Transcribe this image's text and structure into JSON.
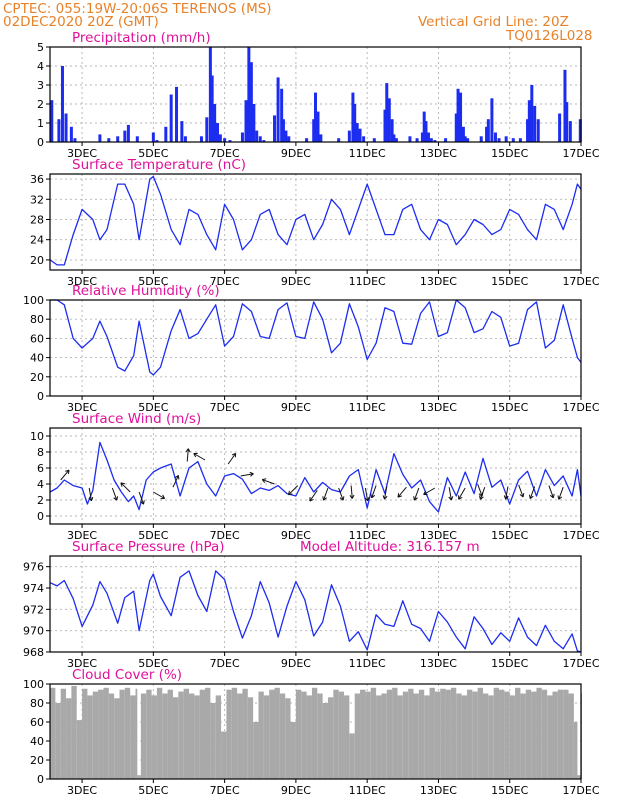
{
  "header": {
    "line1": "CPTEC:   055:19W-20:06S   TERENOS (MS)",
    "line2": "02DEC2020 20Z (GMT)",
    "grid_note": "Vertical Grid Line: 20Z",
    "code": "TQ0126L028"
  },
  "colors": {
    "header": "#e8822a",
    "panel_title": "#e0119b",
    "series": "#1d2df0",
    "arrow": "#111111",
    "cloud": "#a9a9a9",
    "grid": "#b4b4b4"
  },
  "x_axis": {
    "ticks": [
      "3DEC",
      "5DEC",
      "7DEC",
      "9DEC",
      "11DEC",
      "13DEC",
      "15DEC",
      "17DEC"
    ],
    "tick_days": [
      3,
      5,
      7,
      9,
      11,
      13,
      15,
      17
    ],
    "range_days": [
      2.1,
      17.0
    ]
  },
  "chart_data": [
    {
      "id": "precip",
      "type": "bar",
      "title": "Precipitation (mm/h)",
      "ylim": [
        0,
        5
      ],
      "yticks": [
        0,
        1,
        2,
        3,
        4,
        5
      ],
      "grid": true,
      "x": [
        2.15,
        2.35,
        2.45,
        2.55,
        2.7,
        2.8,
        3.5,
        3.75,
        4.0,
        4.2,
        4.3,
        4.55,
        5.0,
        5.1,
        5.35,
        5.5,
        5.65,
        5.8,
        5.9,
        6.35,
        6.5,
        6.6,
        6.65,
        6.72,
        6.8,
        6.88,
        7.0,
        7.15,
        7.5,
        7.6,
        7.68,
        7.75,
        7.82,
        7.9,
        8.0,
        8.1,
        8.4,
        8.5,
        8.6,
        8.65,
        8.72,
        8.8,
        9.3,
        9.5,
        9.55,
        9.62,
        9.7,
        10.2,
        10.5,
        10.6,
        10.65,
        10.72,
        10.8,
        10.9,
        11.2,
        11.5,
        11.55,
        11.62,
        11.7,
        11.75,
        11.82,
        12.2,
        12.4,
        12.55,
        12.6,
        12.65,
        12.72,
        12.8,
        12.9,
        13.2,
        13.5,
        13.55,
        13.62,
        13.7,
        13.75,
        13.82,
        14.2,
        14.35,
        14.4,
        14.5,
        14.6,
        14.7,
        14.9,
        15.1,
        15.3,
        15.5,
        15.55,
        15.62,
        15.7,
        15.8,
        16.4,
        16.55,
        16.6,
        16.7,
        16.98
      ],
      "values": [
        2.2,
        1.2,
        4.0,
        1.5,
        0.8,
        0.2,
        0.4,
        0.2,
        0.3,
        0.6,
        0.9,
        0.3,
        0.5,
        0.1,
        0.8,
        2.5,
        2.9,
        1.1,
        0.3,
        0.3,
        1.3,
        5.0,
        3.5,
        2.0,
        1.0,
        0.4,
        0.2,
        0.1,
        0.5,
        2.2,
        5.0,
        4.2,
        2.0,
        0.6,
        0.3,
        0.1,
        1.4,
        3.4,
        2.8,
        1.2,
        0.6,
        0.3,
        0.2,
        1.2,
        2.6,
        1.6,
        0.4,
        0.2,
        0.6,
        2.6,
        2.0,
        1.0,
        0.7,
        0.3,
        0.2,
        1.7,
        3.1,
        2.3,
        1.2,
        0.4,
        0.2,
        0.3,
        0.2,
        0.5,
        1.6,
        1.1,
        0.5,
        0.2,
        0.1,
        0.2,
        1.5,
        2.8,
        2.6,
        0.8,
        0.3,
        0.2,
        0.3,
        0.8,
        1.2,
        2.3,
        0.5,
        0.2,
        0.3,
        0.2,
        0.2,
        1.2,
        2.2,
        3.0,
        1.9,
        1.2,
        1.5,
        3.8,
        2.1,
        1.1,
        1.2
      ]
    },
    {
      "id": "temperature",
      "type": "line",
      "title": "Surface Temperature (nC)",
      "ylim": [
        18,
        37
      ],
      "yticks": [
        20,
        24,
        28,
        32,
        36
      ],
      "grid": true,
      "x": [
        2.1,
        2.3,
        2.5,
        2.75,
        3.0,
        3.3,
        3.5,
        3.7,
        4.0,
        4.2,
        4.45,
        4.6,
        4.9,
        5.0,
        5.2,
        5.5,
        5.75,
        6.0,
        6.25,
        6.5,
        6.75,
        7.0,
        7.25,
        7.5,
        7.75,
        8.0,
        8.25,
        8.5,
        8.75,
        9.0,
        9.25,
        9.5,
        9.75,
        10.0,
        10.25,
        10.5,
        10.75,
        11.0,
        11.25,
        11.5,
        11.75,
        12.0,
        12.25,
        12.5,
        12.75,
        13.0,
        13.25,
        13.5,
        13.75,
        14.0,
        14.25,
        14.5,
        14.75,
        15.0,
        15.25,
        15.5,
        15.75,
        16.0,
        16.25,
        16.5,
        16.75,
        16.9,
        17.0
      ],
      "values": [
        20,
        19,
        19,
        25,
        30,
        28,
        24,
        26,
        35,
        35,
        31,
        24,
        36,
        36.5,
        33,
        26,
        23,
        30,
        29,
        25,
        22,
        31,
        28,
        22,
        24,
        29,
        30,
        25,
        23,
        28,
        29,
        24,
        27,
        32,
        30,
        25,
        30,
        35,
        30,
        25,
        25,
        30,
        31,
        26,
        24,
        28,
        27,
        23,
        25,
        28,
        27,
        25,
        26,
        30,
        29,
        26,
        24,
        31,
        30,
        26,
        31,
        35,
        34
      ]
    },
    {
      "id": "humidity",
      "type": "line",
      "title": "Relative Humidity (%)",
      "ylim": [
        0,
        100
      ],
      "yticks": [
        0,
        20,
        40,
        60,
        80,
        100
      ],
      "grid": true,
      "x": [
        2.1,
        2.3,
        2.5,
        2.75,
        3.0,
        3.3,
        3.5,
        3.7,
        4.0,
        4.2,
        4.45,
        4.6,
        4.9,
        5.0,
        5.2,
        5.5,
        5.75,
        6.0,
        6.25,
        6.5,
        6.75,
        7.0,
        7.25,
        7.5,
        7.75,
        8.0,
        8.25,
        8.5,
        8.75,
        9.0,
        9.25,
        9.5,
        9.75,
        10.0,
        10.25,
        10.5,
        10.75,
        11.0,
        11.25,
        11.5,
        11.75,
        12.0,
        12.25,
        12.5,
        12.75,
        13.0,
        13.25,
        13.5,
        13.75,
        14.0,
        14.25,
        14.5,
        14.75,
        15.0,
        15.25,
        15.5,
        15.75,
        16.0,
        16.25,
        16.5,
        16.75,
        16.9,
        17.0
      ],
      "values": [
        100,
        100,
        95,
        60,
        50,
        60,
        78,
        62,
        30,
        26,
        42,
        78,
        25,
        22,
        30,
        68,
        90,
        60,
        65,
        80,
        95,
        52,
        62,
        96,
        88,
        62,
        60,
        90,
        97,
        62,
        60,
        98,
        80,
        45,
        55,
        96,
        72,
        38,
        55,
        92,
        88,
        55,
        54,
        86,
        98,
        62,
        66,
        100,
        92,
        66,
        70,
        88,
        82,
        52,
        55,
        90,
        98,
        50,
        58,
        95,
        60,
        40,
        35
      ]
    },
    {
      "id": "wind",
      "type": "line",
      "title": "Surface Wind (m/s)",
      "ylim": [
        -1,
        11
      ],
      "yticks": [
        0,
        2,
        4,
        6,
        8,
        10
      ],
      "grid": true,
      "x": [
        2.1,
        2.3,
        2.5,
        2.75,
        3.0,
        3.15,
        3.3,
        3.5,
        3.7,
        3.9,
        4.1,
        4.3,
        4.45,
        4.6,
        4.8,
        5.0,
        5.2,
        5.5,
        5.75,
        6.0,
        6.25,
        6.5,
        6.75,
        7.0,
        7.25,
        7.5,
        7.75,
        8.0,
        8.25,
        8.5,
        8.75,
        9.0,
        9.25,
        9.5,
        9.75,
        10.0,
        10.25,
        10.5,
        10.75,
        11.0,
        11.25,
        11.5,
        11.75,
        12.0,
        12.25,
        12.5,
        12.75,
        13.0,
        13.25,
        13.5,
        13.75,
        14.0,
        14.25,
        14.5,
        14.75,
        15.0,
        15.25,
        15.5,
        15.75,
        16.0,
        16.25,
        16.5,
        16.75,
        16.9,
        17.0
      ],
      "values": [
        3.0,
        3.5,
        4.5,
        3.8,
        3.5,
        1.5,
        3.2,
        9.2,
        7.0,
        4.5,
        3.0,
        1.8,
        2.5,
        0.8,
        4.5,
        5.5,
        6.0,
        6.5,
        2.5,
        6.0,
        6.8,
        4.0,
        2.5,
        5.0,
        5.3,
        4.6,
        2.8,
        3.5,
        3.2,
        3.8,
        2.8,
        2.5,
        4.8,
        3.0,
        4.2,
        3.3,
        3.0,
        5.0,
        5.8,
        1.0,
        5.8,
        2.8,
        7.8,
        5.2,
        3.5,
        4.5,
        1.8,
        0.5,
        4.8,
        2.5,
        5.5,
        2.8,
        7.2,
        3.6,
        4.5,
        1.5,
        4.5,
        5.6,
        2.5,
        5.8,
        3.8,
        5.0,
        2.5,
        5.8,
        2.5
      ],
      "arrows": {
        "x": [
          2.4,
          3.2,
          3.85,
          4.35,
          4.6,
          5.0,
          5.55,
          5.95,
          6.45,
          7.1,
          7.45,
          8.4,
          9.05,
          9.6,
          9.9,
          10.2,
          10.55,
          10.95,
          11.25,
          11.55,
          12.1,
          12.45,
          12.9,
          13.3,
          13.75,
          14.1,
          14.3,
          14.95,
          15.25,
          15.7,
          16.1,
          16.5
        ],
        "speed": [
          4.5,
          3.5,
          3.5,
          3.0,
          3.0,
          3.0,
          3.6,
          6.8,
          7.0,
          6.5,
          5.0,
          4.0,
          3.8,
          3.2,
          3.5,
          3.5,
          3.8,
          3.5,
          3.8,
          3.7,
          3.6,
          3.5,
          3.5,
          3.6,
          3.5,
          4.0,
          3.6,
          3.7,
          3.9,
          3.7,
          3.8,
          3.6
        ],
        "to_dir_deg": [
          40,
          170,
          160,
          315,
          160,
          120,
          25,
          5,
          300,
          35,
          80,
          290,
          225,
          215,
          200,
          160,
          175,
          170,
          200,
          190,
          220,
          200,
          240,
          170,
          210,
          160,
          200,
          190,
          160,
          200,
          160,
          200
        ]
      }
    },
    {
      "id": "pressure",
      "type": "line",
      "title": "Surface Pressure (hPa)",
      "annotation": "Model Altitude: 316.157 m",
      "ylim": [
        968,
        977
      ],
      "yticks": [
        968,
        970,
        972,
        974,
        976
      ],
      "grid": true,
      "x": [
        2.1,
        2.3,
        2.5,
        2.75,
        3.0,
        3.3,
        3.5,
        3.7,
        4.0,
        4.2,
        4.45,
        4.6,
        4.9,
        5.0,
        5.2,
        5.5,
        5.75,
        6.0,
        6.25,
        6.5,
        6.75,
        7.0,
        7.25,
        7.5,
        7.75,
        8.0,
        8.25,
        8.5,
        8.75,
        9.0,
        9.25,
        9.5,
        9.75,
        10.0,
        10.25,
        10.5,
        10.75,
        11.0,
        11.25,
        11.5,
        11.75,
        12.0,
        12.25,
        12.5,
        12.75,
        13.0,
        13.25,
        13.5,
        13.75,
        14.0,
        14.25,
        14.5,
        14.75,
        15.0,
        15.25,
        15.5,
        15.75,
        16.0,
        16.25,
        16.5,
        16.75,
        16.9,
        17.0
      ],
      "values": [
        974.5,
        974.2,
        974.7,
        973.0,
        970.4,
        972.4,
        974.6,
        973.5,
        970.7,
        973.1,
        973.7,
        970.0,
        974.7,
        975.3,
        973.2,
        971.4,
        975.0,
        975.6,
        973.3,
        971.8,
        975.6,
        974.8,
        971.8,
        969.3,
        971.4,
        974.6,
        972.6,
        969.4,
        972.3,
        974.6,
        972.9,
        969.5,
        970.8,
        974.3,
        972.3,
        969.0,
        969.9,
        968.2,
        971.5,
        970.6,
        970.4,
        972.8,
        970.6,
        970.2,
        969.0,
        971.8,
        970.8,
        969.4,
        968.3,
        971.3,
        970.2,
        968.7,
        969.8,
        969.0,
        971.2,
        969.4,
        968.6,
        970.5,
        969.0,
        968.3,
        969.7,
        968.1,
        968.0
      ]
    },
    {
      "id": "cloud",
      "type": "area",
      "title": "Cloud Cover (%)",
      "ylim": [
        0,
        100
      ],
      "yticks": [
        0,
        20,
        40,
        60,
        80,
        100
      ],
      "grid": true,
      "x": [
        2.1,
        2.25,
        2.4,
        2.55,
        2.7,
        2.85,
        3.0,
        3.15,
        3.3,
        3.45,
        3.6,
        3.75,
        3.9,
        4.05,
        4.2,
        4.35,
        4.5,
        4.55,
        4.65,
        4.8,
        4.95,
        5.1,
        5.25,
        5.4,
        5.55,
        5.7,
        5.85,
        6.0,
        6.15,
        6.3,
        6.45,
        6.6,
        6.75,
        6.9,
        7.05,
        7.2,
        7.35,
        7.5,
        7.65,
        7.8,
        7.95,
        8.1,
        8.25,
        8.4,
        8.55,
        8.7,
        8.85,
        9.0,
        9.15,
        9.3,
        9.45,
        9.6,
        9.75,
        9.9,
        10.05,
        10.2,
        10.35,
        10.5,
        10.65,
        10.8,
        10.95,
        11.1,
        11.25,
        11.4,
        11.55,
        11.7,
        11.85,
        12.0,
        12.15,
        12.3,
        12.45,
        12.6,
        12.75,
        12.9,
        13.05,
        13.2,
        13.35,
        13.5,
        13.65,
        13.8,
        13.95,
        14.1,
        14.25,
        14.4,
        14.55,
        14.7,
        14.85,
        15.0,
        15.15,
        15.3,
        15.45,
        15.6,
        15.75,
        15.9,
        16.05,
        16.2,
        16.35,
        16.5,
        16.65,
        16.8,
        16.9,
        17.0
      ],
      "values": [
        96,
        80,
        95,
        85,
        98,
        62,
        95,
        88,
        92,
        94,
        96,
        90,
        85,
        94,
        96,
        88,
        95,
        4,
        90,
        94,
        88,
        96,
        90,
        94,
        86,
        92,
        95,
        90,
        88,
        94,
        96,
        80,
        88,
        50,
        94,
        96,
        90,
        95,
        86,
        60,
        92,
        88,
        94,
        96,
        90,
        85,
        60,
        94,
        92,
        88,
        96,
        90,
        80,
        86,
        94,
        92,
        88,
        48,
        90,
        94,
        92,
        96,
        88,
        90,
        94,
        96,
        88,
        92,
        95,
        90,
        94,
        88,
        96,
        92,
        95,
        94,
        96,
        90,
        88,
        94,
        92,
        96,
        90,
        88,
        96,
        94,
        92,
        88,
        96,
        90,
        94,
        92,
        96,
        94,
        88,
        92,
        94,
        94,
        90,
        60,
        4,
        90
      ]
    }
  ]
}
